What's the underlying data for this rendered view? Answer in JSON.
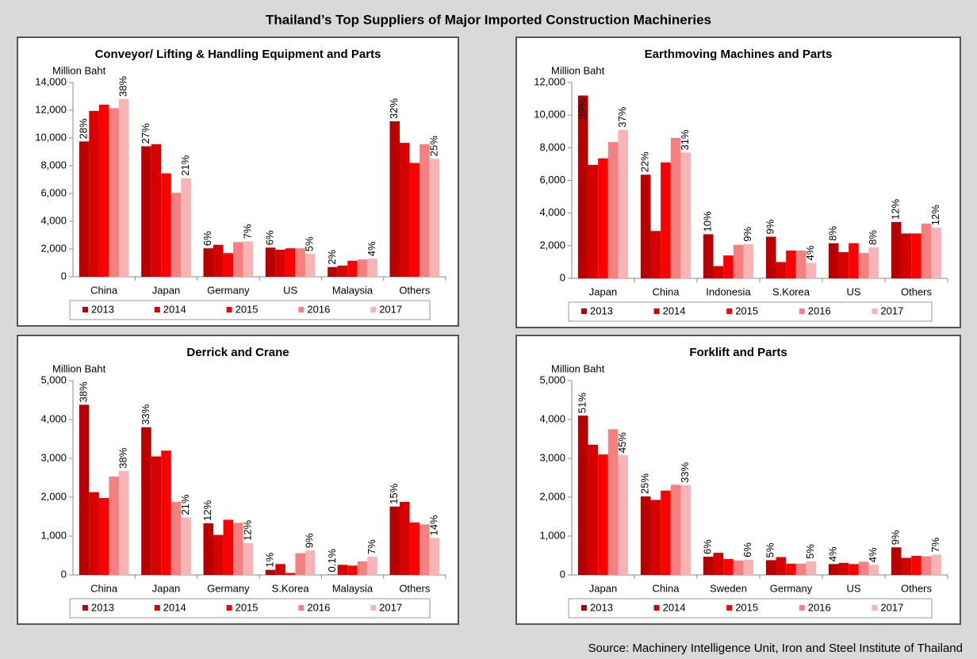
{
  "title": "Thailand’s Top Suppliers of Major Imported Construction Machineries",
  "source": "Source: Machinery Intelligence Unit, Iron and Steel Institute of Thailand",
  "chart_data": [
    {
      "type": "bar",
      "title": "Conveyor/ Lifting & Handling Equipment and Parts",
      "ylabel": "Million Baht",
      "categories": [
        "China",
        "Japan",
        "Germany",
        "US",
        "Malaysia",
        "Others"
      ],
      "ylim": [
        0,
        14000
      ],
      "yticks": [
        0,
        {
          "value": 2000,
          "label": "2,000"
        },
        {
          "value": 4000,
          "label": "4,000"
        },
        {
          "value": 6000,
          "label": "6,000"
        },
        {
          "value": 8000,
          "label": "8,000"
        },
        {
          "value": 10000,
          "label": "10,000"
        },
        {
          "value": 12000,
          "label": "12,000"
        },
        {
          "value": 14000,
          "label": "14,000"
        }
      ],
      "legend": "bottom",
      "series": [
        {
          "name": "2013",
          "color": "#b80000",
          "values": [
            9750,
            9400,
            2050,
            2100,
            700,
            11200
          ],
          "labels": [
            "28%",
            "27%",
            "6%",
            "6%",
            "2%",
            "32%"
          ]
        },
        {
          "name": "2014",
          "color": "#d60000",
          "values": [
            11950,
            9550,
            2300,
            1950,
            800,
            9650
          ]
        },
        {
          "name": "2015",
          "color": "#ff0000",
          "values": [
            12400,
            7450,
            1700,
            2050,
            1150,
            8200
          ]
        },
        {
          "name": "2016",
          "color": "#f58080",
          "values": [
            12150,
            6050,
            2500,
            2050,
            1250,
            9550
          ]
        },
        {
          "name": "2017",
          "color": "#f8b4b4",
          "values": [
            12800,
            7100,
            2550,
            1650,
            1300,
            8500
          ],
          "labels": [
            "38%",
            "21%",
            "7%",
            "5%",
            "4%",
            "25%"
          ]
        }
      ]
    },
    {
      "type": "bar",
      "title": "Earthmoving Machines and Parts",
      "ylabel": "Million Baht",
      "categories": [
        "Japan",
        "China",
        "Indonesia",
        "S.Korea",
        "US",
        "Others"
      ],
      "ylim": [
        0,
        12000
      ],
      "yticks": [
        0,
        {
          "value": 2000,
          "label": "2,000"
        },
        {
          "value": 4000,
          "label": "4,000"
        },
        {
          "value": 6000,
          "label": "6,000"
        },
        {
          "value": 8000,
          "label": "8,000"
        },
        {
          "value": 10000,
          "label": "10,000"
        },
        {
          "value": 12000,
          "label": "12,000"
        }
      ],
      "legend": "bottom",
      "series": [
        {
          "name": "2013",
          "color": "#b80000",
          "values": [
            11200,
            6350,
            2700,
            2550,
            2150,
            3450
          ],
          "labels": [
            "39%",
            "22%",
            "10%",
            "9%",
            "8%",
            "12%"
          ]
        },
        {
          "name": "2014",
          "color": "#d60000",
          "values": [
            6950,
            2900,
            750,
            1000,
            1600,
            2750
          ]
        },
        {
          "name": "2015",
          "color": "#ff0000",
          "values": [
            7350,
            7100,
            1400,
            1700,
            2150,
            2750
          ]
        },
        {
          "name": "2016",
          "color": "#f58080",
          "values": [
            8350,
            8600,
            2050,
            1700,
            1550,
            3350
          ]
        },
        {
          "name": "2017",
          "color": "#f8b4b4",
          "values": [
            9100,
            7700,
            2100,
            950,
            1900,
            3100
          ],
          "labels": [
            "37%",
            "31%",
            "9%",
            "4%",
            "8%",
            "12%"
          ]
        }
      ]
    },
    {
      "type": "bar",
      "title": "Derrick and Crane",
      "ylabel": "Million Baht",
      "categories": [
        "China",
        "Japan",
        "Germany",
        "S.Korea",
        "Malaysia",
        "Others"
      ],
      "ylim": [
        0,
        5000
      ],
      "yticks": [
        0,
        {
          "value": 1000,
          "label": "1,000"
        },
        {
          "value": 2000,
          "label": "2,000"
        },
        {
          "value": 3000,
          "label": "3,000"
        },
        {
          "value": 4000,
          "label": "4,000"
        },
        {
          "value": 5000,
          "label": "5,000"
        }
      ],
      "legend": "bottom",
      "series": [
        {
          "name": "2013",
          "color": "#b80000",
          "values": [
            4380,
            3800,
            1330,
            130,
            10,
            1760
          ],
          "labels": [
            "38%",
            "33%",
            "12%",
            "1%",
            "0.1%",
            "15%"
          ]
        },
        {
          "name": "2014",
          "color": "#d60000",
          "values": [
            2130,
            3050,
            1030,
            280,
            260,
            1880
          ]
        },
        {
          "name": "2015",
          "color": "#ff0000",
          "values": [
            1980,
            3200,
            1420,
            50,
            240,
            1350
          ]
        },
        {
          "name": "2016",
          "color": "#f58080",
          "values": [
            2530,
            1880,
            1340,
            560,
            350,
            1300
          ]
        },
        {
          "name": "2017",
          "color": "#f8b4b4",
          "values": [
            2680,
            1480,
            820,
            630,
            470,
            950
          ],
          "labels": [
            "38%",
            "21%",
            "12%",
            "9%",
            "7%",
            "14%"
          ]
        }
      ]
    },
    {
      "type": "bar",
      "title": "Forklift and Parts",
      "ylabel": "Million Baht",
      "categories": [
        "Japan",
        "China",
        "Sweden",
        "Germany",
        "US",
        "Others"
      ],
      "ylim": [
        0,
        5000
      ],
      "yticks": [
        0,
        {
          "value": 1000,
          "label": "1,000"
        },
        {
          "value": 2000,
          "label": "2,000"
        },
        {
          "value": 3000,
          "label": "3,000"
        },
        {
          "value": 4000,
          "label": "4,000"
        },
        {
          "value": 5000,
          "label": "5,000"
        }
      ],
      "legend": "bottom",
      "series": [
        {
          "name": "2013",
          "color": "#b80000",
          "values": [
            4100,
            2020,
            470,
            380,
            280,
            710
          ],
          "labels": [
            "51%",
            "25%",
            "6%",
            "5%",
            "4%",
            "9%"
          ]
        },
        {
          "name": "2014",
          "color": "#d60000",
          "values": [
            3350,
            1930,
            570,
            460,
            310,
            440
          ]
        },
        {
          "name": "2015",
          "color": "#ff0000",
          "values": [
            3100,
            2170,
            410,
            290,
            280,
            490
          ]
        },
        {
          "name": "2016",
          "color": "#f58080",
          "values": [
            3750,
            2320,
            370,
            290,
            340,
            480
          ]
        },
        {
          "name": "2017",
          "color": "#f8b4b4",
          "values": [
            3080,
            2310,
            390,
            350,
            260,
            520
          ],
          "labels": [
            "45%",
            "33%",
            "6%",
            "5%",
            "4%",
            "7%"
          ]
        }
      ]
    }
  ]
}
